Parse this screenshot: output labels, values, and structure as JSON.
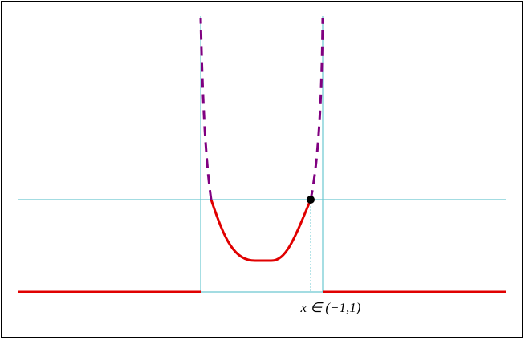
{
  "label": "x ∈ (−1,1)"
}
